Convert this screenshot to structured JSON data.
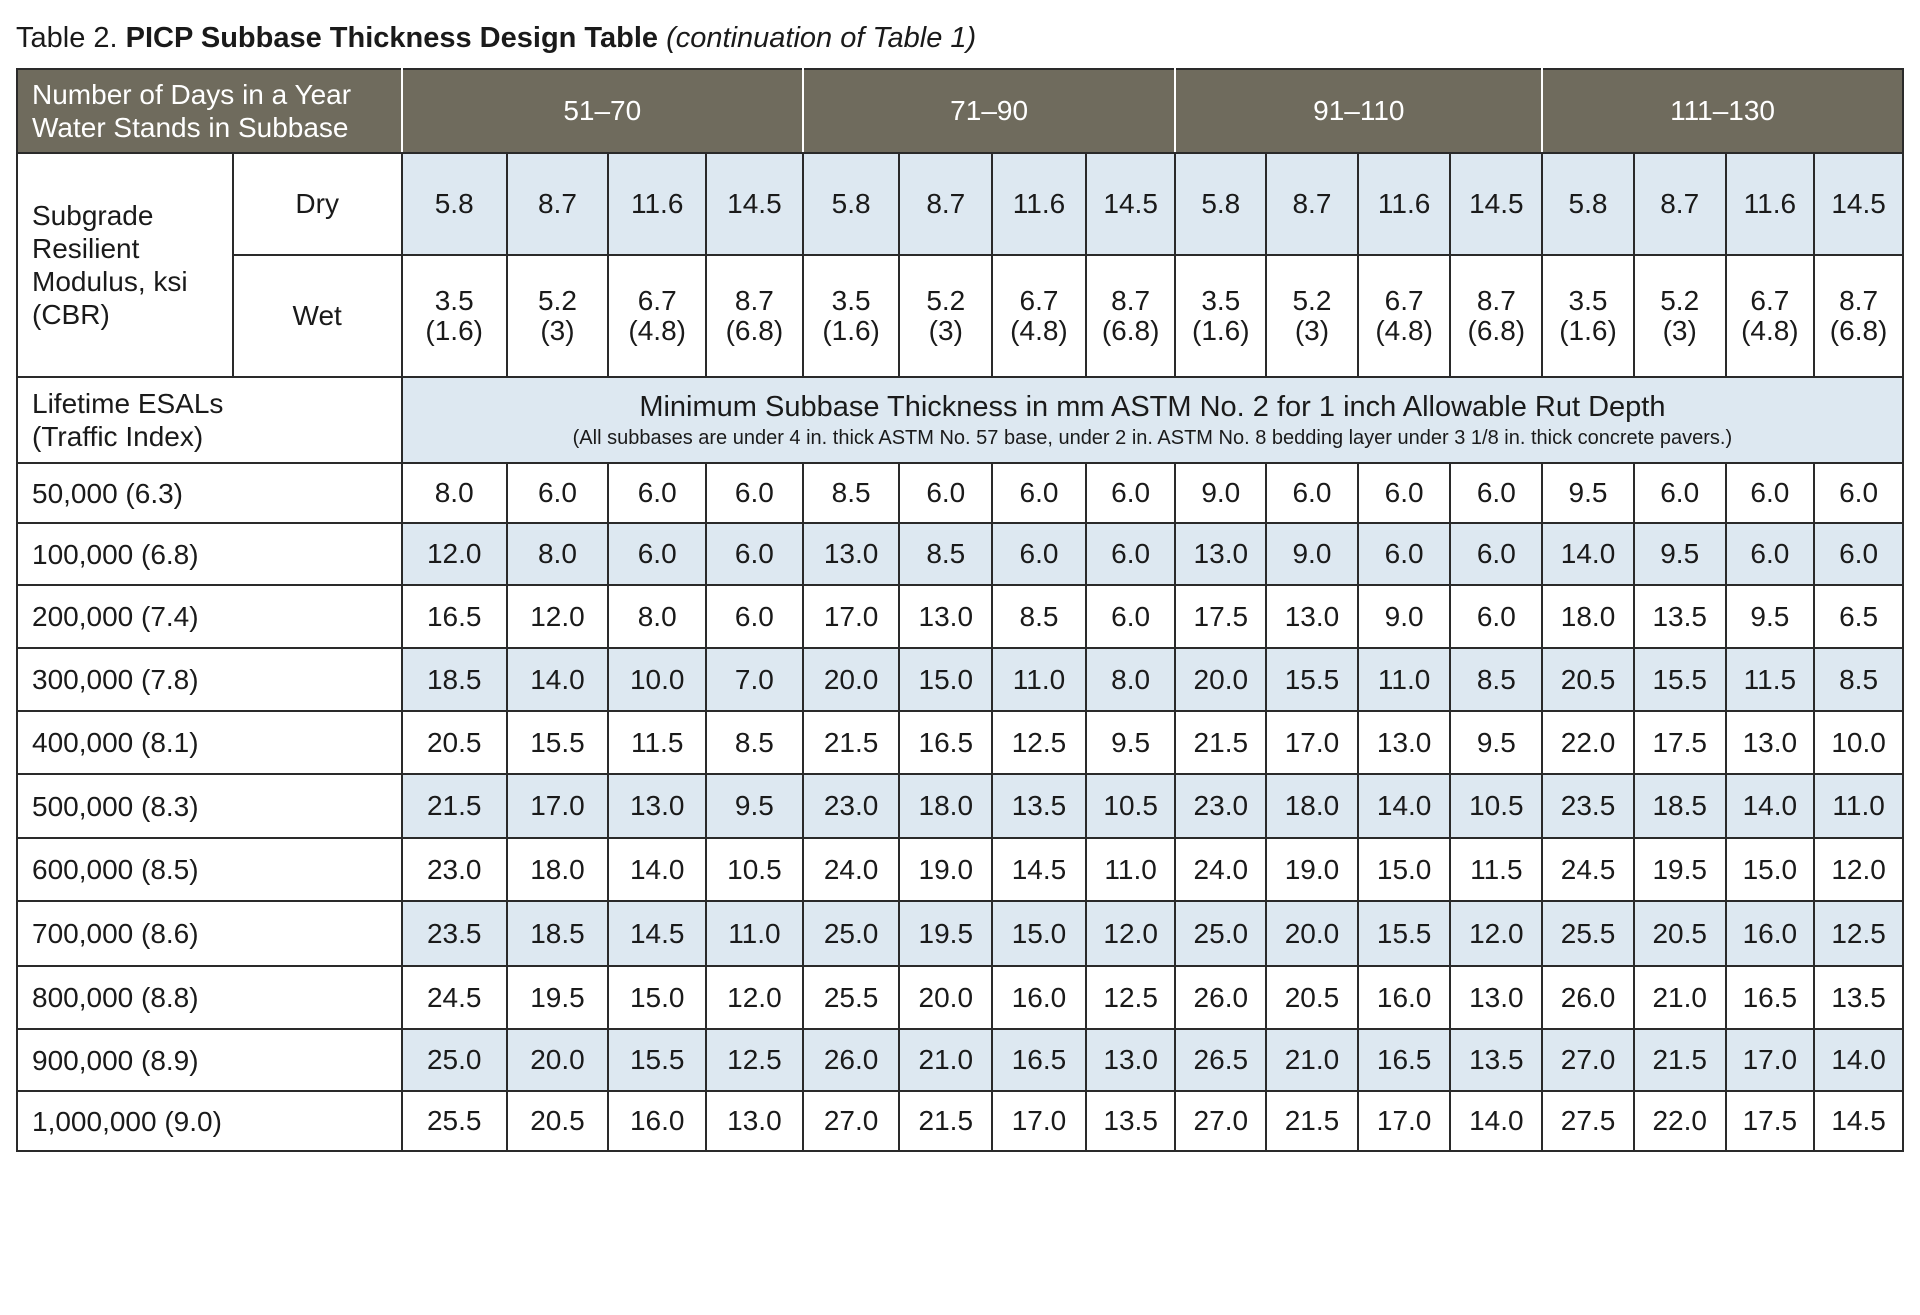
{
  "caption": {
    "prefix": "Table 2.",
    "title": "PICP Subbase Thickness Design Table",
    "suffix": "(continuation of Table 1)"
  },
  "header": {
    "days_label_line1": "Number of Days in a Year",
    "days_label_line2": "Water Stands in Subbase",
    "groups": [
      "51–70",
      "71–90",
      "91–110",
      "111–130"
    ]
  },
  "subgrade": {
    "label_lines": [
      "Subgrade",
      "Resilient",
      "Modulus, ksi",
      "(CBR)"
    ],
    "dry_label": "Dry",
    "wet_label": "Wet",
    "dry_values": [
      "5.8",
      "8.7",
      "11.6",
      "14.5"
    ],
    "wet_values": [
      {
        "ksi": "3.5",
        "cbr": "(1.6)"
      },
      {
        "ksi": "5.2",
        "cbr": "(3)"
      },
      {
        "ksi": "6.7",
        "cbr": "(4.8)"
      },
      {
        "ksi": "8.7",
        "cbr": "(6.8)"
      }
    ]
  },
  "esal_header": {
    "label_line1": "Lifetime ESALs",
    "label_line2": "(Traffic Index)",
    "banner_main": "Minimum Subbase Thickness in mm ASTM No. 2 for 1 inch Allowable Rut Depth",
    "banner_note": "(All subbases are under 4 in. thick ASTM No. 57 base, under 2 in. ASTM No. 8 bedding layer under 3 1/8 in. thick concrete pavers.)"
  },
  "rows": [
    {
      "label": "50,000 (6.3)",
      "values": [
        "8.0",
        "6.0",
        "6.0",
        "6.0",
        "8.5",
        "6.0",
        "6.0",
        "6.0",
        "9.0",
        "6.0",
        "6.0",
        "6.0",
        "9.5",
        "6.0",
        "6.0",
        "6.0"
      ]
    },
    {
      "label": "100,000 (6.8)",
      "values": [
        "12.0",
        "8.0",
        "6.0",
        "6.0",
        "13.0",
        "8.5",
        "6.0",
        "6.0",
        "13.0",
        "9.0",
        "6.0",
        "6.0",
        "14.0",
        "9.5",
        "6.0",
        "6.0"
      ]
    },
    {
      "label": "200,000 (7.4)",
      "values": [
        "16.5",
        "12.0",
        "8.0",
        "6.0",
        "17.0",
        "13.0",
        "8.5",
        "6.0",
        "17.5",
        "13.0",
        "9.0",
        "6.0",
        "18.0",
        "13.5",
        "9.5",
        "6.5"
      ]
    },
    {
      "label": "300,000 (7.8)",
      "values": [
        "18.5",
        "14.0",
        "10.0",
        "7.0",
        "20.0",
        "15.0",
        "11.0",
        "8.0",
        "20.0",
        "15.5",
        "11.0",
        "8.5",
        "20.5",
        "15.5",
        "11.5",
        "8.5"
      ]
    },
    {
      "label": "400,000 (8.1)",
      "values": [
        "20.5",
        "15.5",
        "11.5",
        "8.5",
        "21.5",
        "16.5",
        "12.5",
        "9.5",
        "21.5",
        "17.0",
        "13.0",
        "9.5",
        "22.0",
        "17.5",
        "13.0",
        "10.0"
      ]
    },
    {
      "label": "500,000 (8.3)",
      "values": [
        "21.5",
        "17.0",
        "13.0",
        "9.5",
        "23.0",
        "18.0",
        "13.5",
        "10.5",
        "23.0",
        "18.0",
        "14.0",
        "10.5",
        "23.5",
        "18.5",
        "14.0",
        "11.0"
      ]
    },
    {
      "label": "600,000 (8.5)",
      "values": [
        "23.0",
        "18.0",
        "14.0",
        "10.5",
        "24.0",
        "19.0",
        "14.5",
        "11.0",
        "24.0",
        "19.0",
        "15.0",
        "11.5",
        "24.5",
        "19.5",
        "15.0",
        "12.0"
      ]
    },
    {
      "label": "700,000 (8.6)",
      "values": [
        "23.5",
        "18.5",
        "14.5",
        "11.0",
        "25.0",
        "19.5",
        "15.0",
        "12.0",
        "25.0",
        "20.0",
        "15.5",
        "12.0",
        "25.5",
        "20.5",
        "16.0",
        "12.5"
      ]
    },
    {
      "label": "800,000 (8.8)",
      "values": [
        "24.5",
        "19.5",
        "15.0",
        "12.0",
        "25.5",
        "20.0",
        "16.0",
        "12.5",
        "26.0",
        "20.5",
        "16.0",
        "13.0",
        "26.0",
        "21.0",
        "16.5",
        "13.5"
      ]
    },
    {
      "label": "900,000 (8.9)",
      "values": [
        "25.0",
        "20.0",
        "15.5",
        "12.5",
        "26.0",
        "21.0",
        "16.5",
        "13.0",
        "26.5",
        "21.0",
        "16.5",
        "13.5",
        "27.0",
        "21.5",
        "17.0",
        "14.0"
      ]
    },
    {
      "label": "1,000,000 (9.0)",
      "values": [
        "25.5",
        "20.5",
        "16.0",
        "13.0",
        "27.0",
        "21.5",
        "17.0",
        "13.5",
        "27.0",
        "21.5",
        "17.0",
        "14.0",
        "27.5",
        "22.0",
        "17.5",
        "14.5"
      ]
    }
  ],
  "colors": {
    "header_bg": "#6f6b5d",
    "band_blue": "#dde8f1",
    "grid": "#2a2a2a"
  }
}
